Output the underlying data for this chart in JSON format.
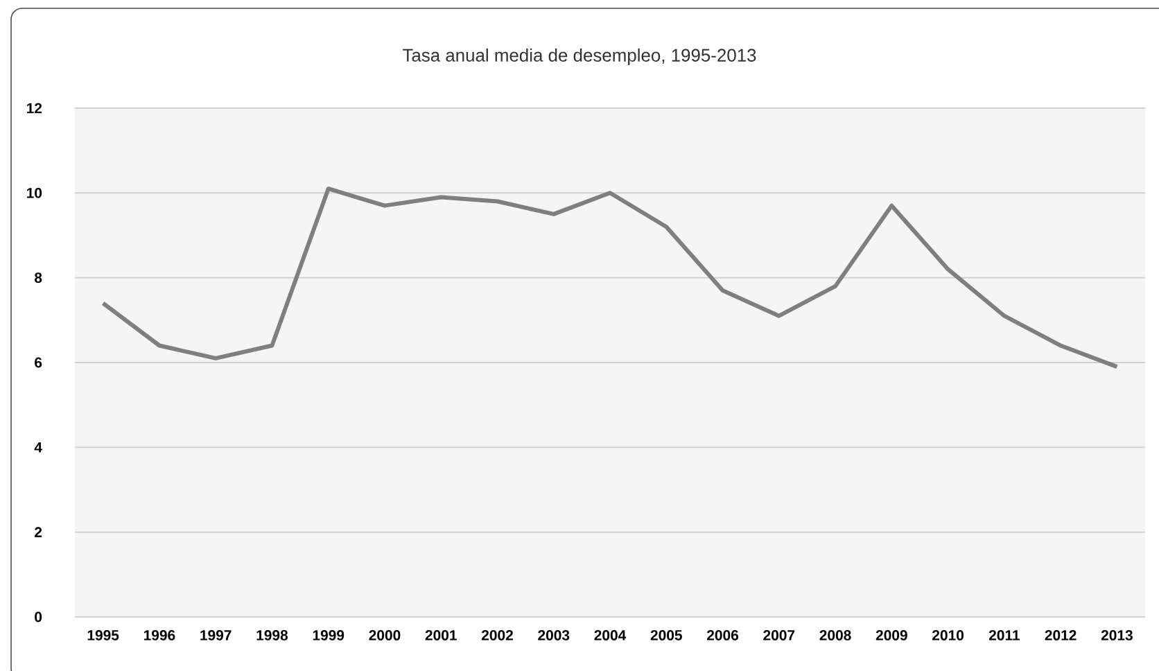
{
  "chart_data": {
    "type": "line",
    "title": "Tasa anual media de desempleo, 1995-2013",
    "categories": [
      "1995",
      "1996",
      "1997",
      "1998",
      "1999",
      "2000",
      "2001",
      "2002",
      "2003",
      "2004",
      "2005",
      "2006",
      "2007",
      "2008",
      "2009",
      "2010",
      "2011",
      "2012",
      "2013"
    ],
    "series": [
      {
        "color": "#7f7f7f",
        "values": [
          7.4,
          6.4,
          6.1,
          6.4,
          10.1,
          9.7,
          9.9,
          9.8,
          9.5,
          10.0,
          9.2,
          7.7,
          7.1,
          7.8,
          9.7,
          8.2,
          7.1,
          6.4,
          5.9
        ]
      }
    ],
    "ylim": [
      0,
      12
    ],
    "yticks": [
      0,
      2,
      4,
      6,
      8,
      10,
      12
    ],
    "grid": "y",
    "marker": "none",
    "line_style": "solid"
  }
}
